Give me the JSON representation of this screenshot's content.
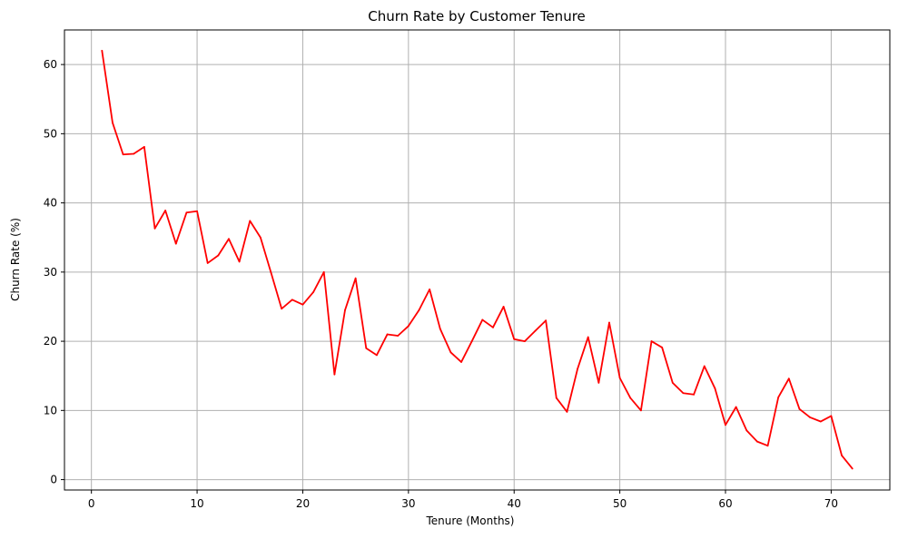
{
  "chart_data": {
    "type": "line",
    "title": "Churn Rate by Customer Tenure",
    "xlabel": "Tenure (Months)",
    "ylabel": "Churn Rate (%)",
    "xlim": [
      -2.55,
      75.55
    ],
    "ylim": [
      -1.5,
      65.0
    ],
    "xticks": [
      0,
      10,
      20,
      30,
      40,
      50,
      60,
      70
    ],
    "yticks": [
      0,
      10,
      20,
      30,
      40,
      50,
      60
    ],
    "grid": true,
    "legend": "none",
    "series": [
      {
        "color": "#ff0000",
        "x": [
          1,
          2,
          3,
          4,
          5,
          6,
          7,
          8,
          9,
          10,
          11,
          12,
          13,
          14,
          15,
          16,
          17,
          18,
          19,
          20,
          21,
          22,
          23,
          24,
          25,
          26,
          27,
          28,
          29,
          30,
          31,
          32,
          33,
          34,
          35,
          36,
          37,
          38,
          39,
          40,
          41,
          42,
          43,
          44,
          45,
          46,
          47,
          48,
          49,
          50,
          51,
          52,
          53,
          54,
          55,
          56,
          57,
          58,
          59,
          60,
          61,
          62,
          63,
          64,
          65,
          66,
          67,
          68,
          69,
          70,
          71,
          72
        ],
        "values": [
          62.0,
          51.6,
          47.0,
          47.1,
          48.1,
          36.3,
          38.9,
          34.1,
          38.6,
          38.8,
          31.3,
          32.4,
          34.8,
          31.5,
          37.4,
          35.0,
          29.9,
          24.7,
          26.0,
          25.3,
          27.1,
          30.0,
          15.2,
          24.5,
          29.1,
          19.0,
          18.0,
          21.0,
          20.8,
          22.2,
          24.5,
          27.5,
          21.8,
          18.4,
          17.0,
          20.0,
          23.1,
          22.0,
          25.0,
          20.3,
          20.0,
          21.5,
          23.0,
          11.8,
          9.8,
          16.0,
          20.6,
          14.0,
          22.7,
          14.7,
          11.8,
          10.0,
          20.0,
          19.1,
          14.0,
          12.5,
          12.3,
          16.4,
          13.2,
          7.9,
          10.5,
          7.1,
          5.5,
          4.9,
          11.9,
          14.6,
          10.2,
          9.0,
          8.4,
          9.2,
          3.5,
          1.6
        ]
      }
    ]
  }
}
